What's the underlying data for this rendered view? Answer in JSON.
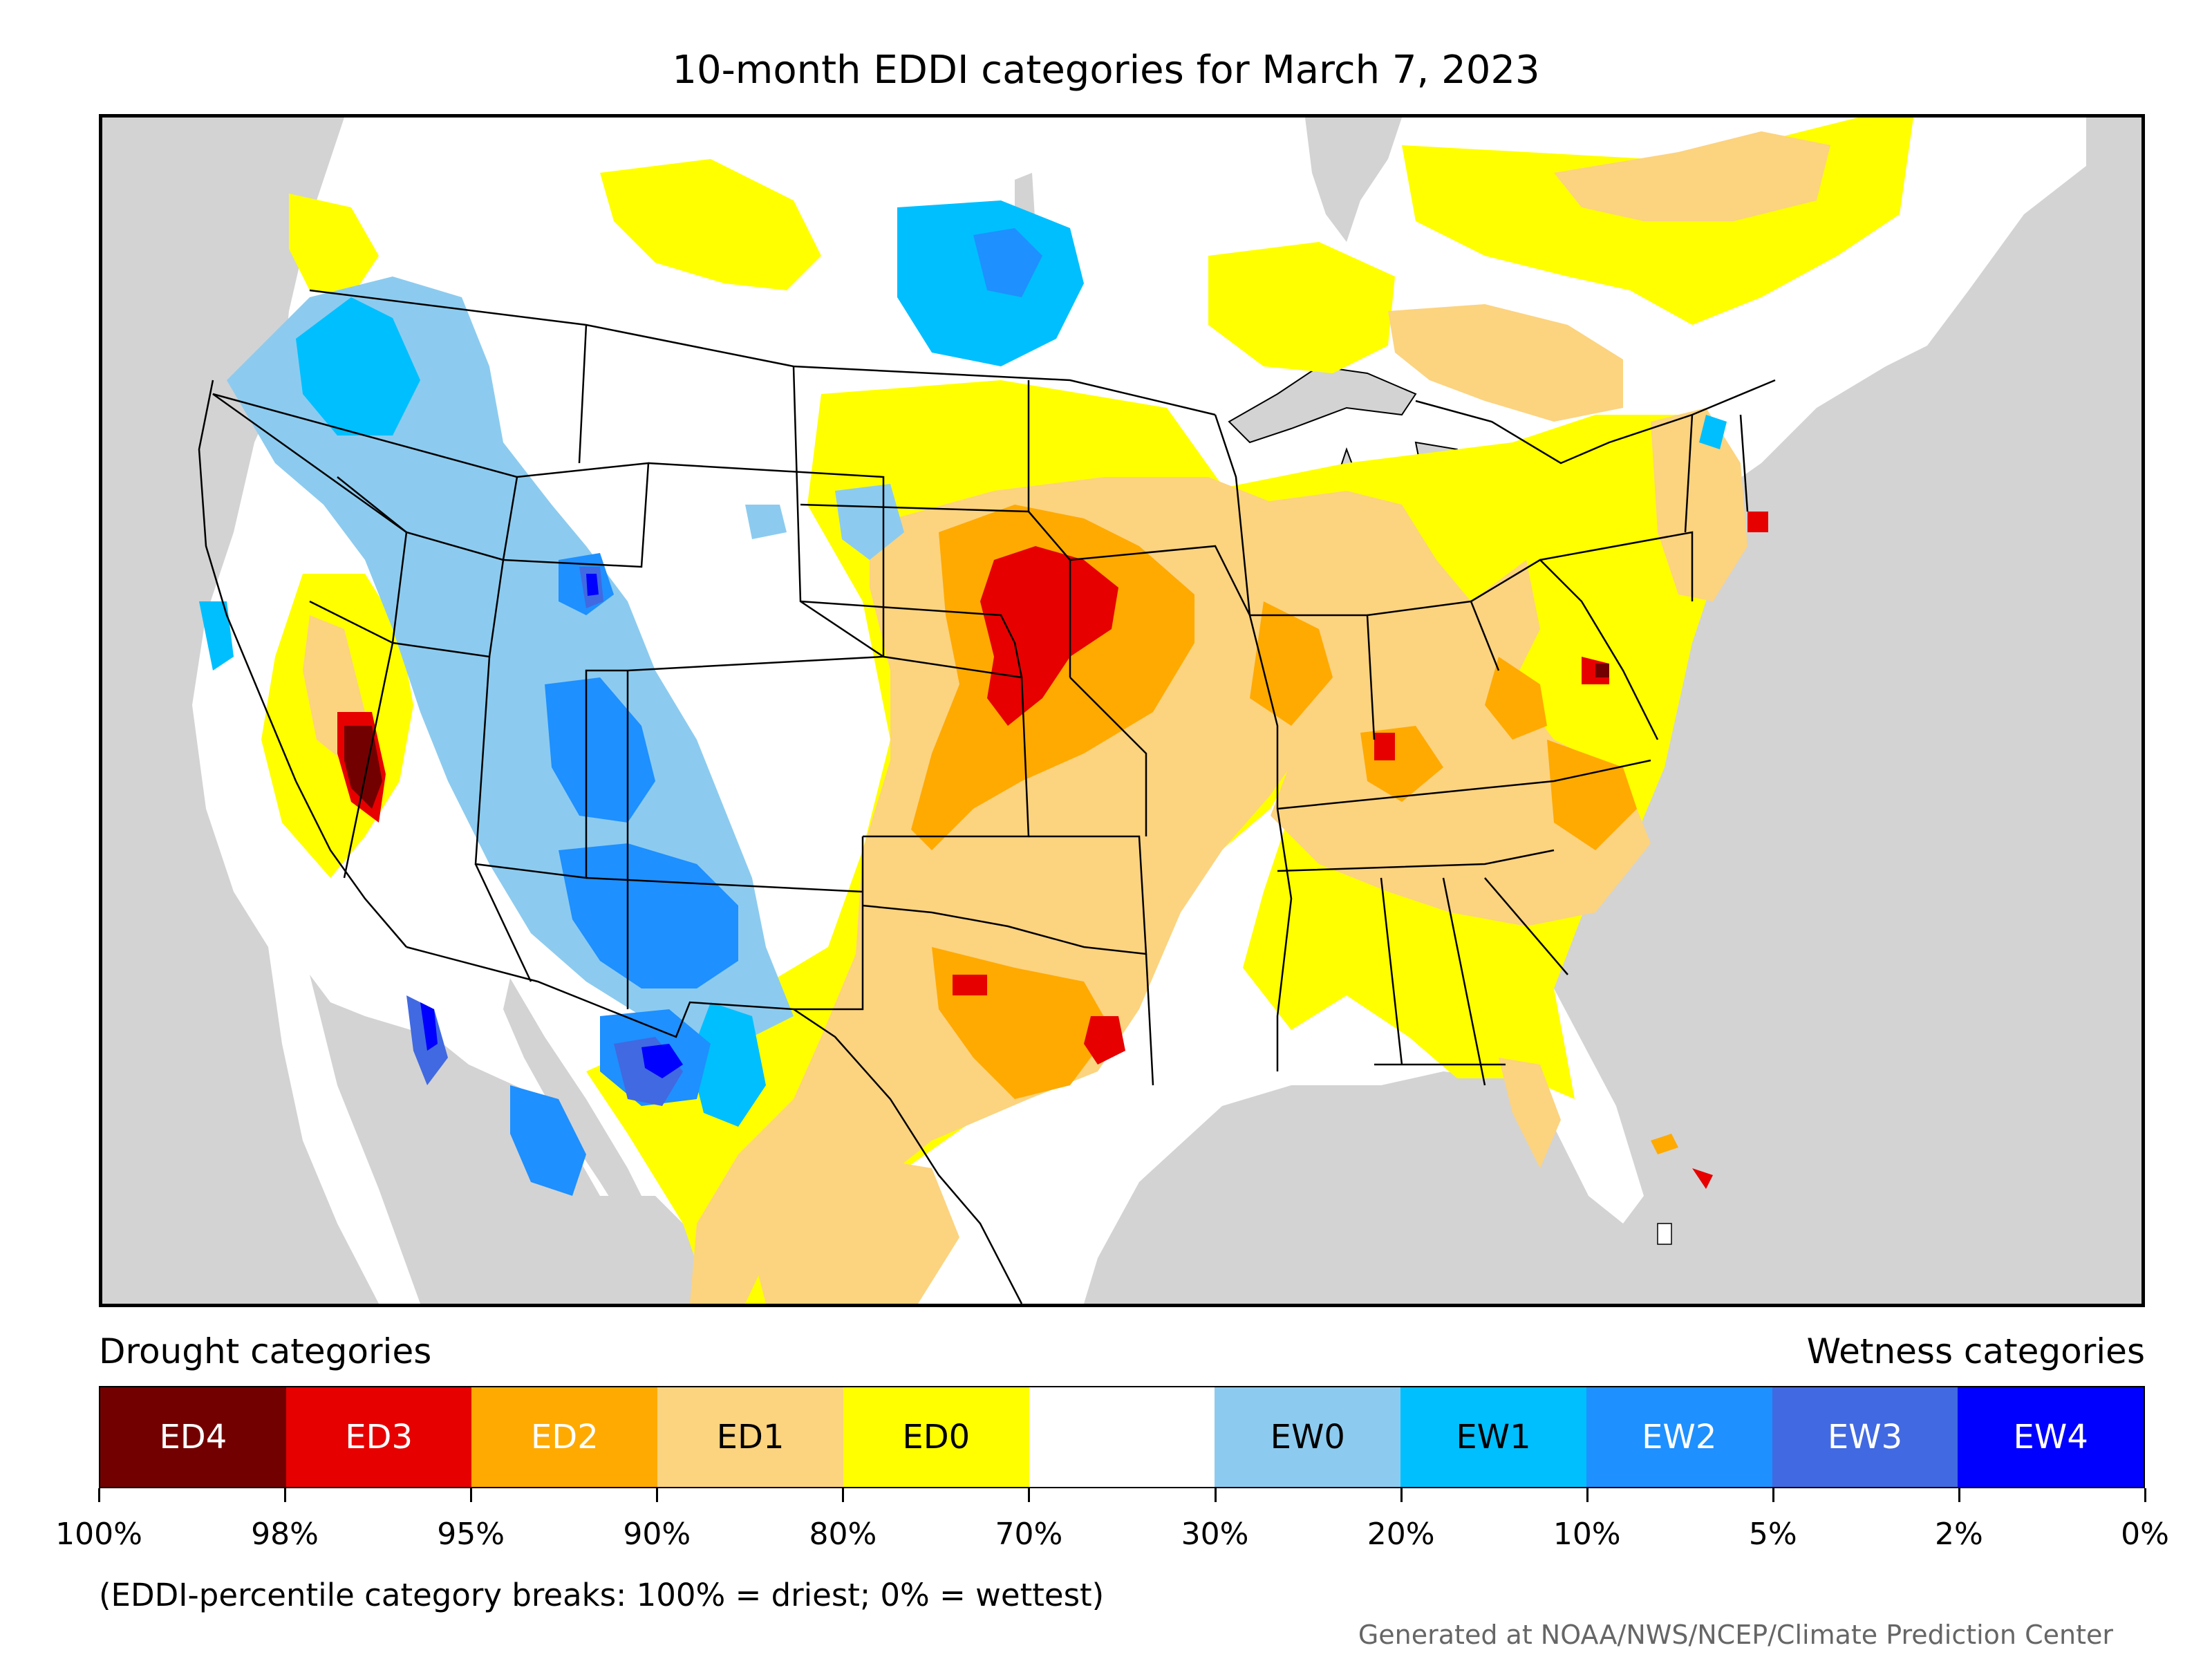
{
  "title": "10-month EDDI categories for March 7, 2023",
  "legend": {
    "drought_heading": "Drought categories",
    "wetness_heading": "Wetness categories",
    "categories": [
      {
        "label": "ED4",
        "color": "#730000",
        "text_color": "#ffffff"
      },
      {
        "label": "ED3",
        "color": "#e60000",
        "text_color": "#ffffff"
      },
      {
        "label": "ED2",
        "color": "#ffaa00",
        "text_color": "#ffffff"
      },
      {
        "label": "ED1",
        "color": "#fcd37f",
        "text_color": "#000000"
      },
      {
        "label": "ED0",
        "color": "#ffff00",
        "text_color": "#000000"
      },
      {
        "label": "",
        "color": "#ffffff",
        "text_color": "#000000"
      },
      {
        "label": "EW0",
        "color": "#8ccbef",
        "text_color": "#000000"
      },
      {
        "label": "EW1",
        "color": "#00bfff",
        "text_color": "#000000"
      },
      {
        "label": "EW2",
        "color": "#1e90ff",
        "text_color": "#ffffff"
      },
      {
        "label": "EW3",
        "color": "#4169e1",
        "text_color": "#ffffff"
      },
      {
        "label": "EW4",
        "color": "#0000ff",
        "text_color": "#ffffff"
      }
    ],
    "breaks": [
      "100%",
      "98%",
      "95%",
      "90%",
      "80%",
      "70%",
      "30%",
      "20%",
      "10%",
      "5%",
      "2%",
      "0%"
    ]
  },
  "note": "(EDDI-percentile category breaks: 100% = driest; 0% = wettest)",
  "credit": "Generated at NOAA/NWS/NCEP/Climate Prediction Center",
  "map": {
    "water_color": "#d3d3d3",
    "land_color": "#ffffff",
    "border_color": "#000000"
  }
}
